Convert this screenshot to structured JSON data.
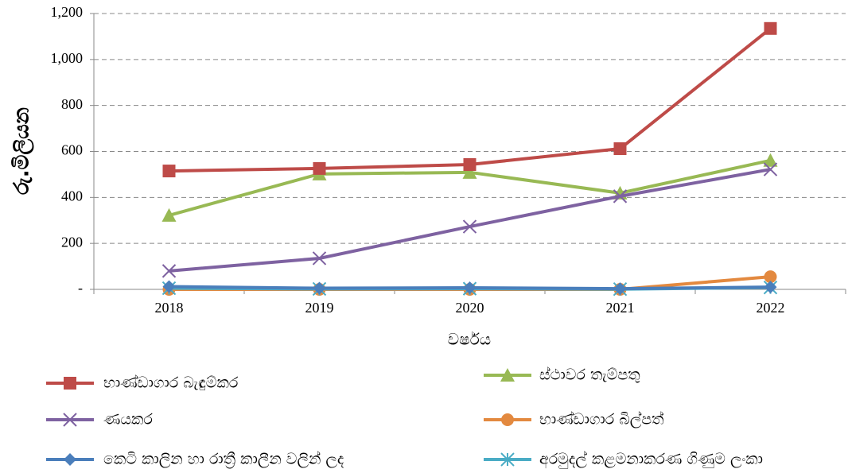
{
  "chart_data": {
    "type": "line",
    "y_label": "රු.මිලියන",
    "x_label": "වර්ෂය",
    "categories": [
      "2018",
      "2019",
      "2020",
      "2021",
      "2022"
    ],
    "ylim": [
      0,
      1200
    ],
    "yticks": [
      {
        "value": 0,
        "label": "-"
      },
      200,
      400,
      600,
      800,
      {
        "value": 1000,
        "label": "1,000"
      },
      {
        "value": 1200,
        "label": "1,200"
      }
    ],
    "grid": true,
    "series": [
      {
        "name": "භාණ්ඩාගාර බැඳුම්කර",
        "color": "#be4b48",
        "marker": "square",
        "values": [
          515,
          526,
          543,
          612,
          1135
        ]
      },
      {
        "name": "ණයකර",
        "color": "#7e62a1",
        "marker": "x",
        "values": [
          80,
          135,
          273,
          405,
          522
        ]
      },
      {
        "name": "කෙටි කාලින හා රාත්‍රී කාලීන වලින් ලද",
        "color": "#4a7ebb",
        "marker": "diamond",
        "values": [
          12,
          5,
          7,
          3,
          10
        ]
      },
      {
        "name": "ස්ථාවර තැම්පතු",
        "color": "#98b954",
        "marker": "triangle",
        "values": [
          322,
          502,
          509,
          419,
          561
        ]
      },
      {
        "name": "භාණ්ඩාගාර බිල්පත්",
        "color": "#e3893f",
        "marker": "circle",
        "values": [
          0,
          0,
          0,
          0,
          55
        ]
      },
      {
        "name": "අරමුදල් කළමනාකරණ ගිණුම ලංකා",
        "color": "#4aacc5",
        "marker": "star",
        "values": [
          5,
          2,
          3,
          1,
          8
        ]
      }
    ]
  }
}
